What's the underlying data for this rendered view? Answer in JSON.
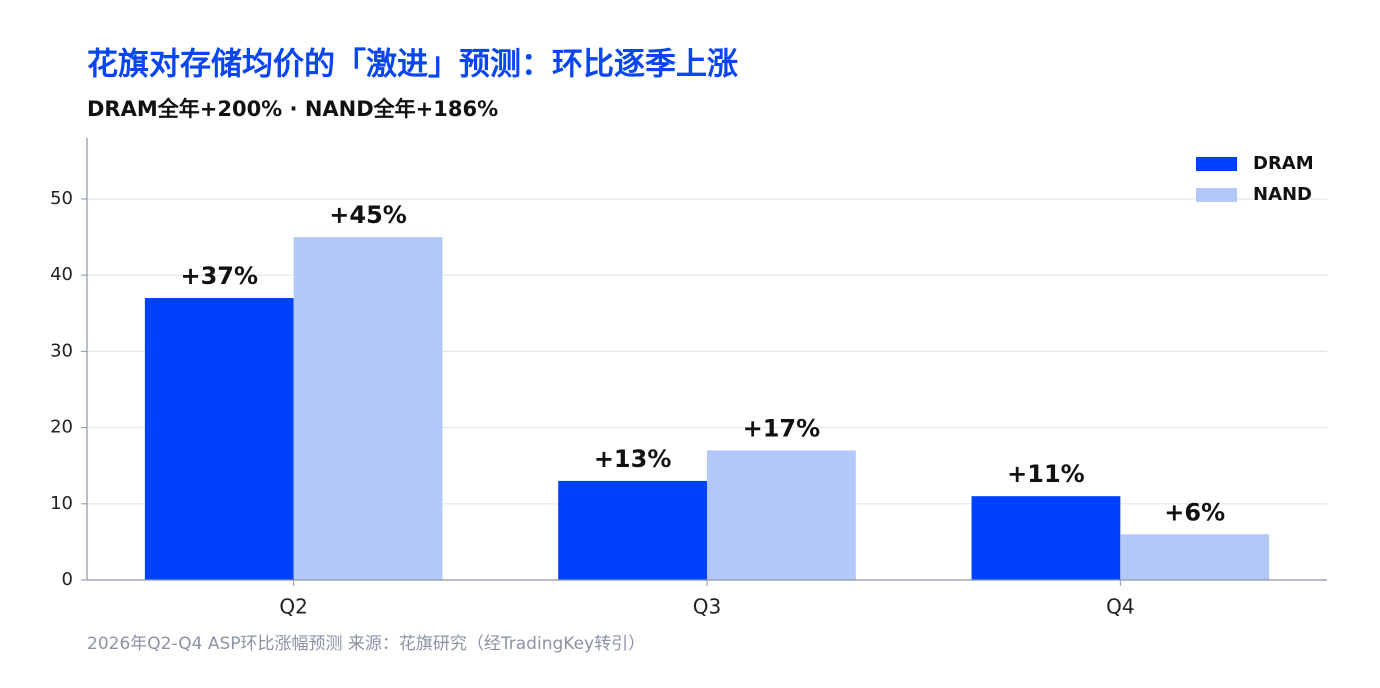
{
  "chart_data": {
    "type": "bar",
    "title": "花旗对存储均价的「激进」预测：环比逐季上涨",
    "subtitle": "DRAM全年+200% · NAND全年+186%",
    "footnote": "2026年Q2-Q4 ASP环比涨幅预测  来源：花旗研究（经TradingKey转引）",
    "categories": [
      "Q2",
      "Q3",
      "Q4"
    ],
    "series": [
      {
        "name": "DRAM",
        "color": "#0040ff",
        "values": [
          37,
          13,
          11
        ],
        "value_labels": [
          "+37%",
          "+13%",
          "+11%"
        ]
      },
      {
        "name": "NAND",
        "color": "#b3c8f8",
        "values": [
          45,
          17,
          6
        ],
        "value_labels": [
          "+45%",
          "+17%",
          "+6%"
        ]
      }
    ],
    "ylim": [
      0,
      58
    ],
    "yticks": [
      0,
      10,
      20,
      30,
      40,
      50
    ],
    "grid": true,
    "legend": "top-right"
  }
}
